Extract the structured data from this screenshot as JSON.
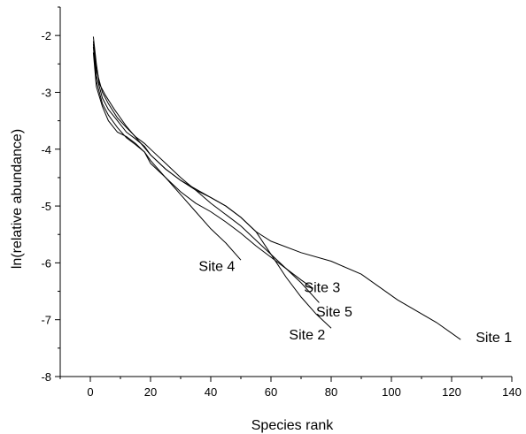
{
  "chart_data": {
    "type": "line",
    "title": "",
    "xlabel": "Species rank",
    "ylabel": "ln(relative abundance)",
    "xlim": [
      -10,
      140
    ],
    "ylim": [
      -8,
      -1.5
    ],
    "xticks": [
      0,
      20,
      40,
      60,
      80,
      100,
      120,
      140
    ],
    "yticks": [
      -8,
      -7,
      -6,
      -5,
      -4,
      -3,
      -2
    ],
    "x_minor_step": 10,
    "y_minor_step": 0.5,
    "grid": false,
    "legend": "none",
    "line_color": "#000000",
    "series": [
      {
        "name": "Site 1",
        "label_at": [
          128,
          -7.3
        ],
        "points": [
          [
            1,
            -2.02
          ],
          [
            2,
            -2.5
          ],
          [
            3,
            -2.85
          ],
          [
            5,
            -3.05
          ],
          [
            8,
            -3.3
          ],
          [
            12,
            -3.6
          ],
          [
            16,
            -3.85
          ],
          [
            20,
            -4.1
          ],
          [
            25,
            -4.35
          ],
          [
            30,
            -4.55
          ],
          [
            35,
            -4.72
          ],
          [
            40,
            -4.85
          ],
          [
            45,
            -5.0
          ],
          [
            50,
            -5.2
          ],
          [
            55,
            -5.45
          ],
          [
            60,
            -5.62
          ],
          [
            70,
            -5.82
          ],
          [
            80,
            -5.97
          ],
          [
            90,
            -6.2
          ],
          [
            102,
            -6.65
          ],
          [
            115,
            -7.05
          ],
          [
            123,
            -7.35
          ]
        ]
      },
      {
        "name": "Site 2",
        "label_at": [
          66,
          -7.25
        ],
        "points": [
          [
            1,
            -2.15
          ],
          [
            2,
            -2.7
          ],
          [
            4,
            -3.1
          ],
          [
            6,
            -3.3
          ],
          [
            9,
            -3.5
          ],
          [
            12,
            -3.7
          ],
          [
            15,
            -3.82
          ],
          [
            18,
            -3.95
          ],
          [
            20,
            -4.1
          ],
          [
            25,
            -4.35
          ],
          [
            30,
            -4.55
          ],
          [
            35,
            -4.7
          ],
          [
            40,
            -4.85
          ],
          [
            45,
            -5.0
          ],
          [
            50,
            -5.2
          ],
          [
            55,
            -5.45
          ],
          [
            60,
            -5.85
          ],
          [
            65,
            -6.25
          ],
          [
            70,
            -6.6
          ],
          [
            75,
            -6.9
          ],
          [
            80,
            -7.15
          ]
        ]
      },
      {
        "name": "Site 3",
        "label_at": [
          71,
          -6.42
        ],
        "points": [
          [
            1,
            -2.2
          ],
          [
            2,
            -2.8
          ],
          [
            4,
            -3.2
          ],
          [
            6,
            -3.4
          ],
          [
            9,
            -3.62
          ],
          [
            12,
            -3.8
          ],
          [
            15,
            -3.92
          ],
          [
            18,
            -4.05
          ],
          [
            20,
            -4.2
          ],
          [
            25,
            -4.5
          ],
          [
            30,
            -4.75
          ],
          [
            35,
            -4.95
          ],
          [
            40,
            -5.1
          ],
          [
            45,
            -5.28
          ],
          [
            50,
            -5.48
          ],
          [
            55,
            -5.7
          ],
          [
            60,
            -5.9
          ],
          [
            65,
            -6.1
          ],
          [
            70,
            -6.3
          ],
          [
            74,
            -6.45
          ]
        ]
      },
      {
        "name": "Site 4",
        "label_at": [
          36,
          -6.05
        ],
        "points": [
          [
            1,
            -2.3
          ],
          [
            2,
            -2.9
          ],
          [
            4,
            -3.25
          ],
          [
            6,
            -3.5
          ],
          [
            9,
            -3.7
          ],
          [
            12,
            -3.78
          ],
          [
            15,
            -3.9
          ],
          [
            18,
            -4.05
          ],
          [
            20,
            -4.25
          ],
          [
            25,
            -4.5
          ],
          [
            30,
            -4.8
          ],
          [
            35,
            -5.1
          ],
          [
            40,
            -5.4
          ],
          [
            45,
            -5.65
          ],
          [
            50,
            -5.95
          ]
        ]
      },
      {
        "name": "Site 5",
        "label_at": [
          75,
          -6.85
        ],
        "points": [
          [
            1,
            -2.1
          ],
          [
            2,
            -2.6
          ],
          [
            4,
            -3.0
          ],
          [
            6,
            -3.2
          ],
          [
            9,
            -3.45
          ],
          [
            12,
            -3.62
          ],
          [
            15,
            -3.78
          ],
          [
            18,
            -3.9
          ],
          [
            20,
            -4.0
          ],
          [
            25,
            -4.25
          ],
          [
            30,
            -4.5
          ],
          [
            35,
            -4.72
          ],
          [
            40,
            -4.95
          ],
          [
            45,
            -5.15
          ],
          [
            50,
            -5.35
          ],
          [
            55,
            -5.6
          ],
          [
            60,
            -5.85
          ],
          [
            65,
            -6.1
          ],
          [
            70,
            -6.35
          ],
          [
            76,
            -6.7
          ]
        ]
      }
    ]
  }
}
